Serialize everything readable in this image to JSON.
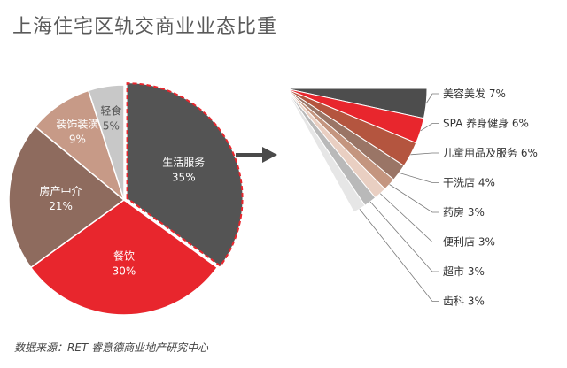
{
  "title": "上海住宅区轨交商业业态比重",
  "source": "数据来源：RET 睿意德商业地产研究中心",
  "chart_data": [
    {
      "type": "pie",
      "slices": [
        {
          "name": "生活服务",
          "label": "35%",
          "value": 35,
          "color": "#545454",
          "text_color": "#ffffff"
        },
        {
          "name": "餐饮",
          "label": "30%",
          "value": 30,
          "color": "#e8262d",
          "text_color": "#ffffff"
        },
        {
          "name": "房产中介",
          "label": "21%",
          "value": 21,
          "color": "#8e6b5e",
          "text_color": "#ffffff"
        },
        {
          "name": "装饰装潢",
          "label": "9%",
          "value": 9,
          "color": "#c79a87",
          "text_color": "#ffffff"
        },
        {
          "name": "轻食",
          "label": "5%",
          "value": 5,
          "color": "#c8c8c8",
          "text_color": "#555555"
        }
      ],
      "exploded_slice": "生活服务"
    },
    {
      "type": "bar",
      "orientation": "fan",
      "categories": [
        "美容美发",
        "SPA 养身健身",
        "儿童用品及服务",
        "干洗店",
        "药房",
        "便利店",
        "超市",
        "齿科"
      ],
      "labels": [
        "美容美发 7%",
        "SPA 养身健身 6%",
        "儿童用品及服务 6%",
        "干洗店 4%",
        "药房 3%",
        "便利店 3%",
        "超市 3%",
        "齿科 3%"
      ],
      "values": [
        7,
        6,
        6,
        4,
        3,
        3,
        3,
        3
      ],
      "colors": [
        "#4d4d4d",
        "#e8262d",
        "#b4553f",
        "#9a7566",
        "#c4957f",
        "#e9cfc2",
        "#b9b9b9",
        "#e6e6e6"
      ]
    }
  ]
}
